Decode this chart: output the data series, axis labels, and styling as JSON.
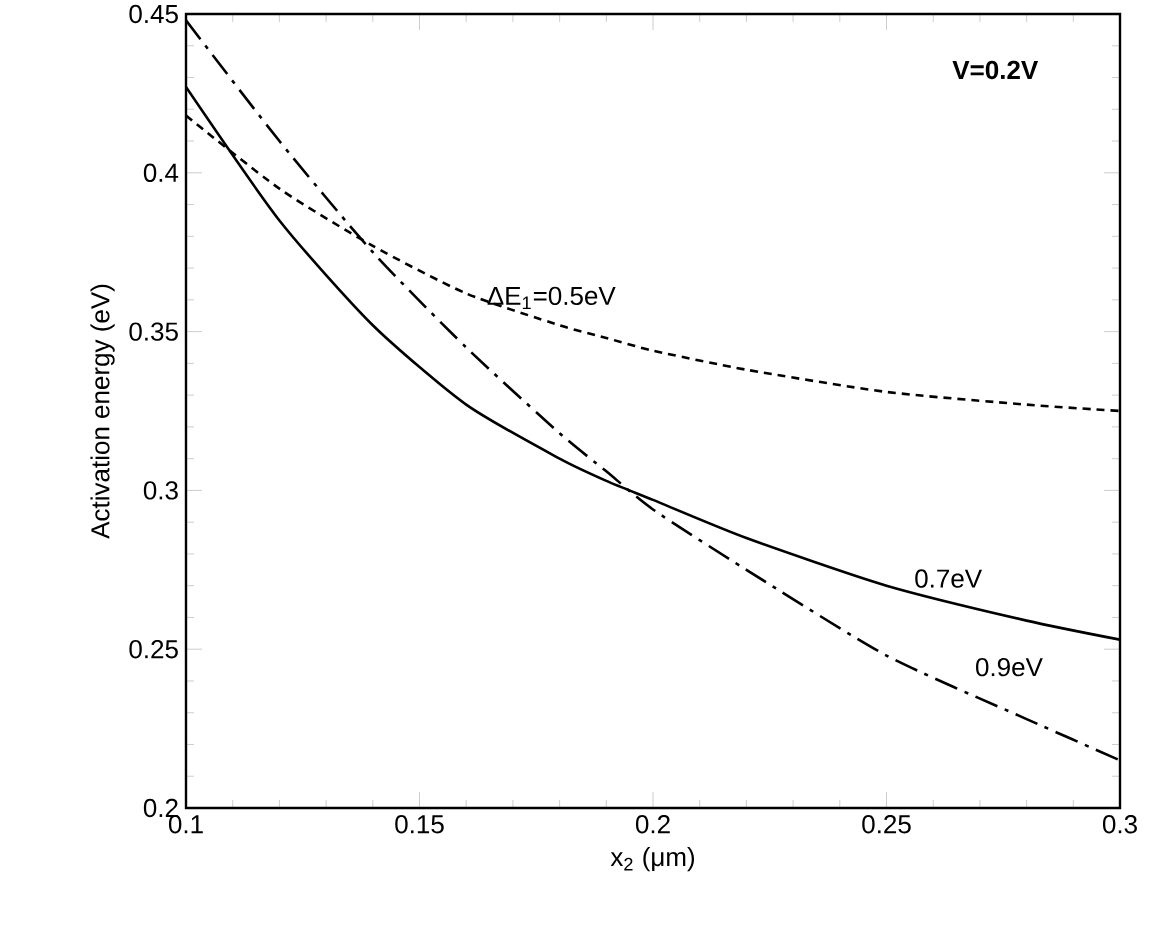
{
  "chart_data": {
    "type": "line",
    "xlabel": "x$_{2}$ (μm)",
    "ylabel": "Activation  energy   (eV)",
    "annotations": [
      "V=0.2V"
    ],
    "x": [
      0.1,
      0.12,
      0.14,
      0.16,
      0.18,
      0.19,
      0.2,
      0.22,
      0.25,
      0.28,
      0.3
    ],
    "series": [
      {
        "name": "ΔE$_{1}$=0.5eV",
        "color": "#000000",
        "line_style": "dotted",
        "values": [
          0.418,
          0.395,
          0.377,
          0.362,
          0.352,
          0.348,
          0.344,
          0.338,
          0.331,
          0.327,
          0.325
        ]
      },
      {
        "name": "0.7eV",
        "color": "#000000",
        "line_style": "solid",
        "values": [
          0.427,
          0.385,
          0.352,
          0.327,
          0.31,
          0.303,
          0.297,
          0.285,
          0.27,
          0.259,
          0.253
        ]
      },
      {
        "name": "0.9eV",
        "color": "#000000",
        "line_style": "dashed",
        "values": [
          0.448,
          0.41,
          0.375,
          0.345,
          0.318,
          0.306,
          0.294,
          0.275,
          0.248,
          0.228,
          0.215
        ]
      }
    ],
    "xlim": [
      0.1,
      0.3
    ],
    "ylim": [
      0.2,
      0.45
    ],
    "xticks": [
      0.1,
      0.15,
      0.2,
      0.25,
      0.3
    ],
    "yticks": [
      0.2,
      0.25,
      0.3,
      0.35,
      0.4,
      0.45
    ],
    "grid": false,
    "marker": "none"
  }
}
